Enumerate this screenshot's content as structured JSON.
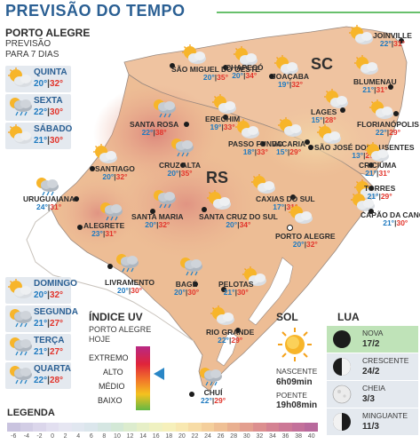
{
  "header": {
    "title": "PREVISÃO DO TEMPO"
  },
  "forecast_panel": {
    "city": "PORTO ALEGRE",
    "subtitle_1": "PREVISÃO",
    "subtitle_2": "PARA 7 DIAS"
  },
  "days": [
    {
      "name": "QUINTA",
      "min": "20°",
      "max": "32°",
      "icon": "partly-cloudy-icon"
    },
    {
      "name": "SEXTA",
      "min": "22°",
      "max": "30°",
      "icon": "sun-rain-icon"
    },
    {
      "name": "SÁBADO",
      "min": "21°",
      "max": "30°",
      "icon": "partly-cloudy-icon"
    },
    {
      "name": "DOMINGO",
      "min": "20°",
      "max": "32°",
      "icon": "partly-cloudy-icon"
    },
    {
      "name": "SEGUNDA",
      "min": "21°",
      "max": "27°",
      "icon": "sun-rain-icon"
    },
    {
      "name": "TERÇA",
      "min": "21°",
      "max": "27°",
      "icon": "sun-rain-icon"
    },
    {
      "name": "QUARTA",
      "min": "22°",
      "max": "28°",
      "icon": "sun-rain-icon"
    }
  ],
  "states": {
    "sc": "SC",
    "rs": "RS"
  },
  "cities": [
    {
      "name": "JOINVILLE",
      "min": "22°",
      "max": "31°",
      "icon": "partly-cloudy-icon"
    },
    {
      "name": "SÃO MIGUEL DO OESTE",
      "min": "20°",
      "max": "35°",
      "icon": "partly-cloudy-icon"
    },
    {
      "name": "CHAPECÓ",
      "min": "20°",
      "max": "34°",
      "icon": "partly-cloudy-icon"
    },
    {
      "name": "JOAÇABA",
      "min": "19°",
      "max": "32°",
      "icon": "partly-cloudy-icon"
    },
    {
      "name": "BLUMENAU",
      "min": "21°",
      "max": "31°",
      "icon": "partly-cloudy-icon"
    },
    {
      "name": "LAGES",
      "min": "15°",
      "max": "28°",
      "icon": "partly-cloudy-icon"
    },
    {
      "name": "FLORIANÓPOLIS",
      "min": "22°",
      "max": "29°",
      "icon": "partly-cloudy-icon"
    },
    {
      "name": "SANTA ROSA",
      "min": "22°",
      "max": "38°",
      "icon": "sun-rain-icon"
    },
    {
      "name": "ERECHIM",
      "min": "19°",
      "max": "33°",
      "icon": "partly-cloudy-icon"
    },
    {
      "name": "PASSO FUNDO",
      "min": "18°",
      "max": "33°",
      "icon": "partly-cloudy-icon"
    },
    {
      "name": "VACARIA",
      "min": "15°",
      "max": "29°",
      "icon": "partly-cloudy-icon"
    },
    {
      "name": "SÃO JOSÉ DOS AUSENTES",
      "min": "13°",
      "max": "27°",
      "icon": "partly-cloudy-icon"
    },
    {
      "name": "CRICIÚMA",
      "min": "21°",
      "max": "31°",
      "icon": "partly-cloudy-icon"
    },
    {
      "name": "TORRES",
      "min": "21°",
      "max": "29°",
      "icon": "partly-cloudy-icon"
    },
    {
      "name": "CRUZ ALTA",
      "min": "20°",
      "max": "35°",
      "icon": "sun-rain-icon"
    },
    {
      "name": "SANTIAGO",
      "min": "20°",
      "max": "32°",
      "icon": "partly-cloudy-icon"
    },
    {
      "name": "URUGUAIANA",
      "min": "24°",
      "max": "31°",
      "icon": "sun-rain-icon"
    },
    {
      "name": "CAXIAS DO SUL",
      "min": "17°",
      "max": "31°",
      "icon": "partly-cloudy-icon"
    },
    {
      "name": "CAPÃO DA CANOA",
      "min": "21°",
      "max": "30°",
      "icon": "partly-cloudy-icon"
    },
    {
      "name": "SANTA MARIA",
      "min": "20°",
      "max": "32°",
      "icon": "sun-rain-icon"
    },
    {
      "name": "SANTA CRUZ DO SUL",
      "min": "20°",
      "max": "34°",
      "icon": "partly-cloudy-icon"
    },
    {
      "name": "PORTO ALEGRE",
      "min": "20°",
      "max": "32°",
      "icon": "partly-cloudy-icon"
    },
    {
      "name": "ALEGRETE",
      "min": "23°",
      "max": "31°",
      "icon": "sun-rain-icon"
    },
    {
      "name": "LIVRAMENTO",
      "min": "20°",
      "max": "30°",
      "icon": "sun-rain-icon"
    },
    {
      "name": "BAGÉ",
      "min": "20°",
      "max": "30°",
      "icon": "sun-rain-icon"
    },
    {
      "name": "PELOTAS",
      "min": "21°",
      "max": "30°",
      "icon": "partly-cloudy-icon"
    },
    {
      "name": "RIO GRANDE",
      "min": "22°",
      "max": "29°",
      "icon": "partly-cloudy-icon"
    },
    {
      "name": "CHUÍ",
      "min": "22°",
      "max": "29°",
      "icon": "sun-rain-icon"
    }
  ],
  "uv": {
    "title": "ÍNDICE UV",
    "subtitle_1": "PORTO ALEGRE",
    "subtitle_2": "HOJE",
    "levels": [
      "EXTREMO",
      "ALTO",
      "MÉDIO",
      "BAIXO"
    ],
    "current": "ALTO"
  },
  "sol": {
    "title": "SOL",
    "sunrise_label": "NASCENTE",
    "sunrise": "6h09min",
    "sunset_label": "POENTE",
    "sunset": "19h08min"
  },
  "lua": {
    "title": "LUA",
    "phases": [
      {
        "name": "NOVA",
        "date": "17/2",
        "icon": "new-moon-icon",
        "active": true
      },
      {
        "name": "CRESCENTE",
        "date": "24/2",
        "icon": "first-quarter-moon-icon",
        "active": false
      },
      {
        "name": "CHEIA",
        "date": "3/3",
        "icon": "full-moon-icon",
        "active": false
      },
      {
        "name": "MINGUANTE",
        "date": "11/3",
        "icon": "last-quarter-moon-icon",
        "active": false
      }
    ]
  },
  "legend": {
    "title": "LEGENDA",
    "ticks": [
      "-6",
      "-4",
      "-2",
      "0",
      "2",
      "4",
      "6",
      "8",
      "10",
      "12",
      "14",
      "16",
      "18",
      "20",
      "22",
      "24",
      "26",
      "28",
      "30",
      "32",
      "34",
      "36",
      "38",
      "40"
    ],
    "colors": [
      "#c9c3df",
      "#d2cde5",
      "#dbd6eb",
      "#e2dff0",
      "#e6e6f2",
      "#e1e7f0",
      "#dbe6ec",
      "#d5e6e2",
      "#d3e8d6",
      "#dcecce",
      "#e6efc7",
      "#eff1c1",
      "#f6f0bb",
      "#f8e8b1",
      "#f7dca6",
      "#f4cf9c",
      "#efc095",
      "#e9b090",
      "#e39f8f",
      "#dc8f8f",
      "#d48292",
      "#cc7896",
      "#c3709a",
      "#b8699c"
    ]
  },
  "colors": {
    "title": "#2a5f93",
    "min_temp": "#1f7ac0",
    "max_temp": "#e2342b",
    "accent_rule": "#68c06c",
    "uv_pointer": "#2a86c6"
  }
}
